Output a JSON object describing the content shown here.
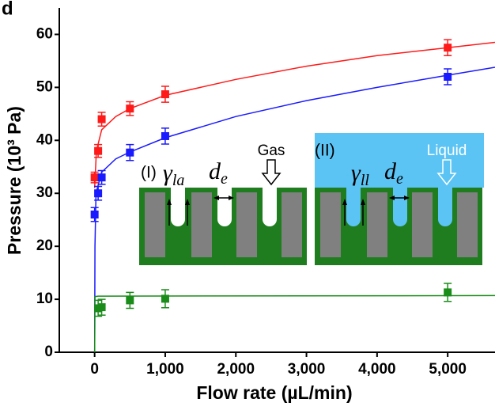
{
  "chart_data": {
    "type": "scatter",
    "panel_label": "d",
    "x_label": "Flow rate (µL/min)",
    "y_label": "Pressure (10³ Pa)",
    "xlim": [
      -500,
      5670
    ],
    "ylim": [
      0,
      65
    ],
    "xticks": [
      0,
      {
        "value": 1000,
        "label": "1,000"
      },
      {
        "value": 2000,
        "label": "2,000"
      },
      {
        "value": 3000,
        "label": "3,000"
      },
      {
        "value": 4000,
        "label": "4,000"
      },
      {
        "value": 5000,
        "label": "5,000"
      }
    ],
    "yticks": [
      0,
      10,
      20,
      30,
      40,
      50,
      60
    ],
    "series": [
      {
        "color": "#ff1a1a",
        "x": [
          0,
          50,
          100,
          500,
          1000,
          5000
        ],
        "values": [
          33,
          38,
          44,
          46,
          48.7,
          57.5
        ],
        "errors": [
          1,
          1.2,
          1.3,
          1.3,
          1.5,
          1.5
        ]
      },
      {
        "color": "#1a1aff",
        "x": [
          0,
          50,
          100,
          500,
          1000,
          5000
        ],
        "values": [
          26,
          30,
          33,
          37.7,
          40.8,
          52
        ],
        "errors": [
          1.3,
          1.3,
          1.3,
          1.5,
          1.5,
          1.5
        ]
      },
      {
        "color": "#1a8c1a",
        "x": [
          50,
          100,
          500,
          1000,
          5000
        ],
        "values": [
          8.3,
          8.5,
          9.8,
          10.1,
          11.3
        ],
        "errors": [
          1.5,
          1.5,
          1.5,
          1.7,
          1.7
        ]
      }
    ],
    "fits": [
      {
        "color": "#ff1a1a",
        "x": [
          0,
          25,
          100,
          300,
          500,
          1000,
          2000,
          3000,
          4000,
          5000,
          5670
        ],
        "values": [
          31,
          38,
          42,
          44.5,
          46,
          48.5,
          51.5,
          54,
          56,
          57.5,
          58.5
        ]
      },
      {
        "color": "#1a1aff",
        "x": [
          0,
          5,
          20,
          100,
          300,
          500,
          1000,
          2000,
          3000,
          4000,
          5000,
          5670
        ],
        "values": [
          0,
          20,
          30,
          34,
          36.5,
          37.8,
          40.5,
          44.5,
          47.5,
          50,
          52.3,
          53.8
        ]
      },
      {
        "color": "#1a8c1a",
        "x": [
          0,
          5,
          50,
          5670
        ],
        "values": [
          0,
          10.5,
          10.6,
          10.7
        ]
      }
    ],
    "insets": [
      {
        "label": "(I)",
        "gamma": "γ",
        "gamma_sub": "la",
        "d": "d",
        "d_sub": "e",
        "medium": "Gas"
      },
      {
        "label": "(II)",
        "gamma": "γ",
        "gamma_sub": "ll",
        "d": "d",
        "d_sub": "e",
        "medium": "Liquid",
        "medium_color": "#5bc4f5"
      }
    ]
  }
}
